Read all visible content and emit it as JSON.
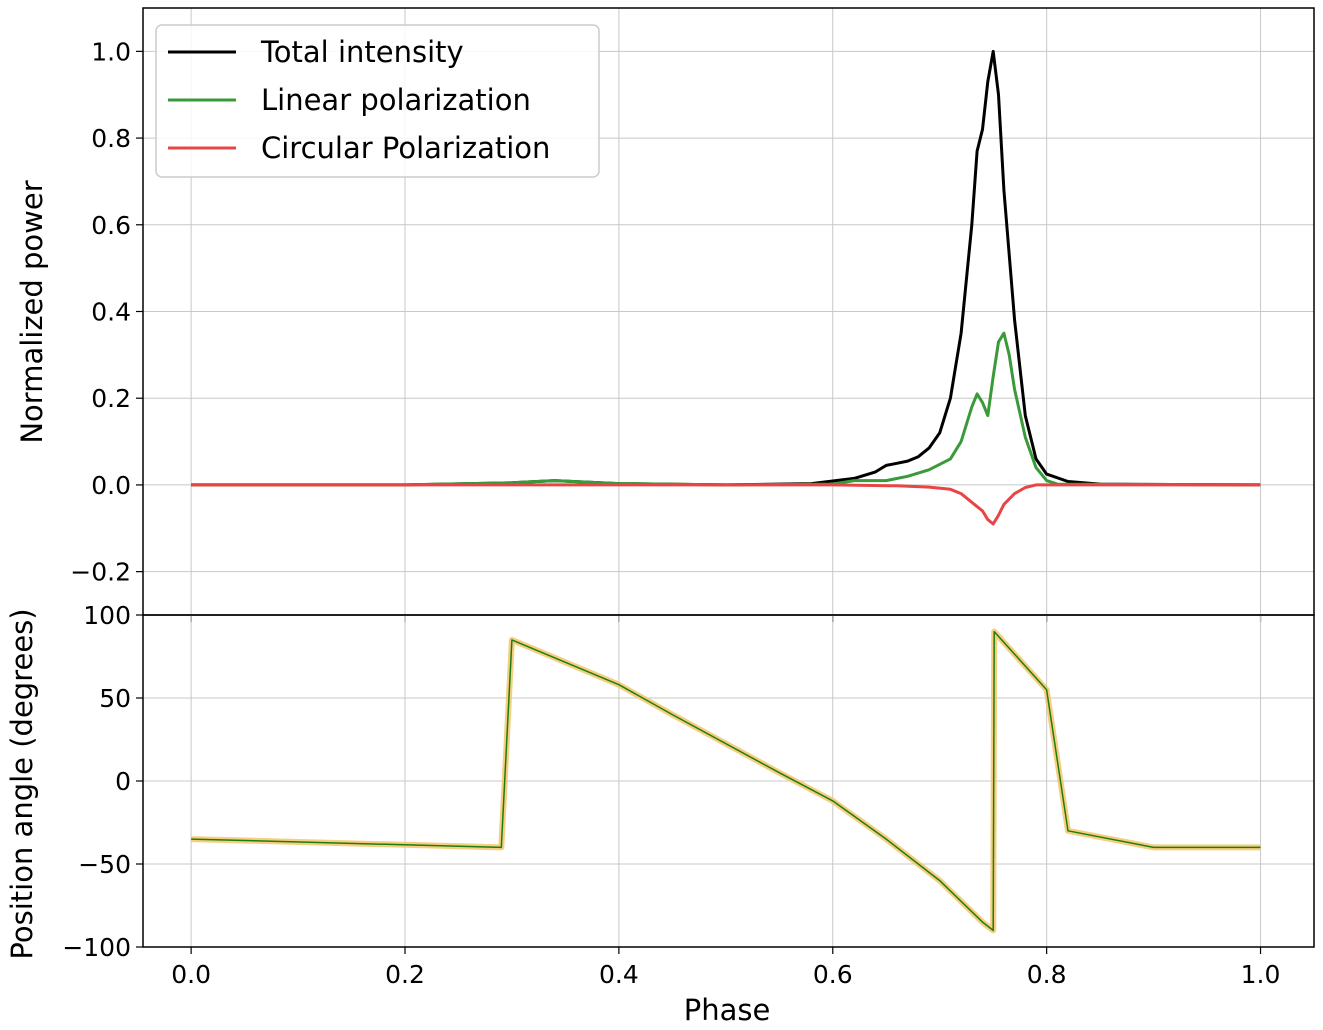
{
  "chart_data": [
    {
      "type": "line",
      "xlabel": "",
      "ylabel": "Normalized power",
      "xlim": [
        -0.045,
        1.05
      ],
      "ylim": [
        -0.3,
        1.1
      ],
      "xticks": [
        "0.0",
        "0.2",
        "0.4",
        "0.6",
        "0.8",
        "1.0"
      ],
      "yticks": [
        "−0.2",
        "0.0",
        "0.2",
        "0.4",
        "0.6",
        "0.8",
        "1.0"
      ],
      "grid": true,
      "legend_position": "top-left",
      "series": [
        {
          "name": "Total intensity",
          "color": "#000000",
          "x": [
            0.0,
            0.2,
            0.3,
            0.34,
            0.4,
            0.5,
            0.58,
            0.62,
            0.64,
            0.65,
            0.66,
            0.67,
            0.68,
            0.69,
            0.7,
            0.71,
            0.72,
            0.73,
            0.735,
            0.74,
            0.745,
            0.75,
            0.755,
            0.76,
            0.77,
            0.78,
            0.79,
            0.8,
            0.82,
            0.85,
            1.0
          ],
          "values": [
            0.0,
            0.0,
            0.005,
            0.01,
            0.003,
            0.0,
            0.003,
            0.015,
            0.03,
            0.045,
            0.05,
            0.055,
            0.065,
            0.085,
            0.12,
            0.2,
            0.35,
            0.6,
            0.77,
            0.82,
            0.93,
            1.0,
            0.9,
            0.68,
            0.38,
            0.16,
            0.06,
            0.025,
            0.008,
            0.002,
            0.0
          ]
        },
        {
          "name": "Linear polarization",
          "color": "#3a9a3a",
          "x": [
            0.0,
            0.2,
            0.3,
            0.34,
            0.4,
            0.5,
            0.6,
            0.62,
            0.65,
            0.67,
            0.69,
            0.71,
            0.72,
            0.73,
            0.735,
            0.74,
            0.745,
            0.75,
            0.755,
            0.76,
            0.765,
            0.77,
            0.78,
            0.79,
            0.8,
            0.81,
            1.0
          ],
          "values": [
            0.0,
            0.0,
            0.005,
            0.01,
            0.003,
            0.0,
            0.002,
            0.01,
            0.01,
            0.02,
            0.035,
            0.06,
            0.1,
            0.18,
            0.21,
            0.19,
            0.16,
            0.25,
            0.33,
            0.35,
            0.3,
            0.22,
            0.11,
            0.04,
            0.01,
            0.002,
            0.0
          ]
        },
        {
          "name": "Circular Polarization",
          "color": "#e84545",
          "x": [
            0.0,
            0.6,
            0.66,
            0.69,
            0.71,
            0.72,
            0.73,
            0.74,
            0.745,
            0.75,
            0.755,
            0.76,
            0.77,
            0.78,
            0.79,
            1.0
          ],
          "values": [
            0.0,
            0.0,
            -0.002,
            -0.005,
            -0.01,
            -0.02,
            -0.04,
            -0.06,
            -0.08,
            -0.09,
            -0.07,
            -0.045,
            -0.02,
            -0.006,
            0.0,
            0.0
          ]
        }
      ]
    },
    {
      "type": "line",
      "xlabel": "Phase",
      "ylabel": "Position angle (degrees)",
      "xlim": [
        -0.045,
        1.05
      ],
      "ylim": [
        -100,
        100
      ],
      "xticks": [
        "0.0",
        "0.2",
        "0.4",
        "0.6",
        "0.8",
        "1.0"
      ],
      "yticks": [
        "−100",
        "−50",
        "0",
        "50",
        "100"
      ],
      "grid": true,
      "series": [
        {
          "color": "#1a7f10",
          "x": [
            0.0,
            0.29,
            0.3,
            0.4,
            0.45,
            0.55,
            0.6,
            0.65,
            0.7,
            0.74,
            0.75,
            0.751,
            0.8,
            0.82,
            0.9,
            1.0
          ],
          "values": [
            -35,
            -40,
            85,
            58,
            40,
            5,
            -12,
            -35,
            -60,
            -85,
            -90,
            90,
            55,
            -30,
            -40,
            -40
          ]
        },
        {
          "color": "#f6c56b",
          "x": [
            0.0,
            0.29,
            0.3,
            0.4,
            0.45,
            0.55,
            0.6,
            0.65,
            0.7,
            0.74,
            0.75,
            0.751,
            0.8,
            0.82,
            0.9,
            1.0
          ],
          "values": [
            -35,
            -40,
            85,
            58,
            40,
            5,
            -12,
            -35,
            -60,
            -85,
            -90,
            90,
            55,
            -30,
            -40,
            -40
          ]
        }
      ]
    }
  ]
}
